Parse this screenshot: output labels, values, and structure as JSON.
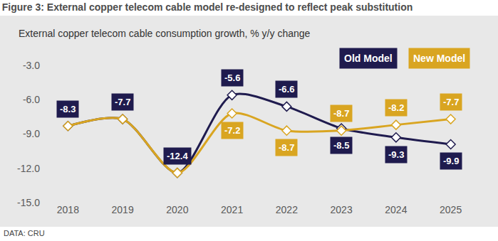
{
  "chart_data": {
    "type": "line",
    "title": "Figure 3: External copper telecom cable model re-designed to reflect peak substitution",
    "subtitle": "External copper telecom cable consumption growth, % y/y change",
    "source": "DATA: CRU",
    "categories": [
      "2018",
      "2019",
      "2020",
      "2021",
      "2022",
      "2023",
      "2024",
      "2025"
    ],
    "series": [
      {
        "name": "Old Model",
        "color": "#1f1b4e",
        "marker": "diamond",
        "line_style": "solid",
        "values": [
          -8.3,
          -7.7,
          -12.4,
          -5.6,
          -6.6,
          -8.5,
          -9.3,
          -9.9
        ]
      },
      {
        "name": "New Model",
        "color": "#d9a521",
        "marker": "diamond",
        "line_style": "solid",
        "values": [
          -8.3,
          -7.7,
          -12.4,
          -7.2,
          -8.7,
          -8.7,
          -8.2,
          -7.7
        ],
        "value_labels": [
          null,
          null,
          null,
          "-7.2",
          "-8.7",
          "-8.7",
          "-8.2",
          "-7.7"
        ]
      }
    ],
    "ylim": [
      -15,
      -3
    ],
    "yticks": [
      {
        "value": -15,
        "label": "-15.0"
      },
      {
        "value": -12,
        "label": "-12.0"
      },
      {
        "value": -9,
        "label": "-9.0"
      },
      {
        "value": -6,
        "label": "-6.0"
      },
      {
        "value": -3,
        "label": "-3.0"
      }
    ],
    "grid": false,
    "legend": "top right",
    "data_labels": true
  }
}
